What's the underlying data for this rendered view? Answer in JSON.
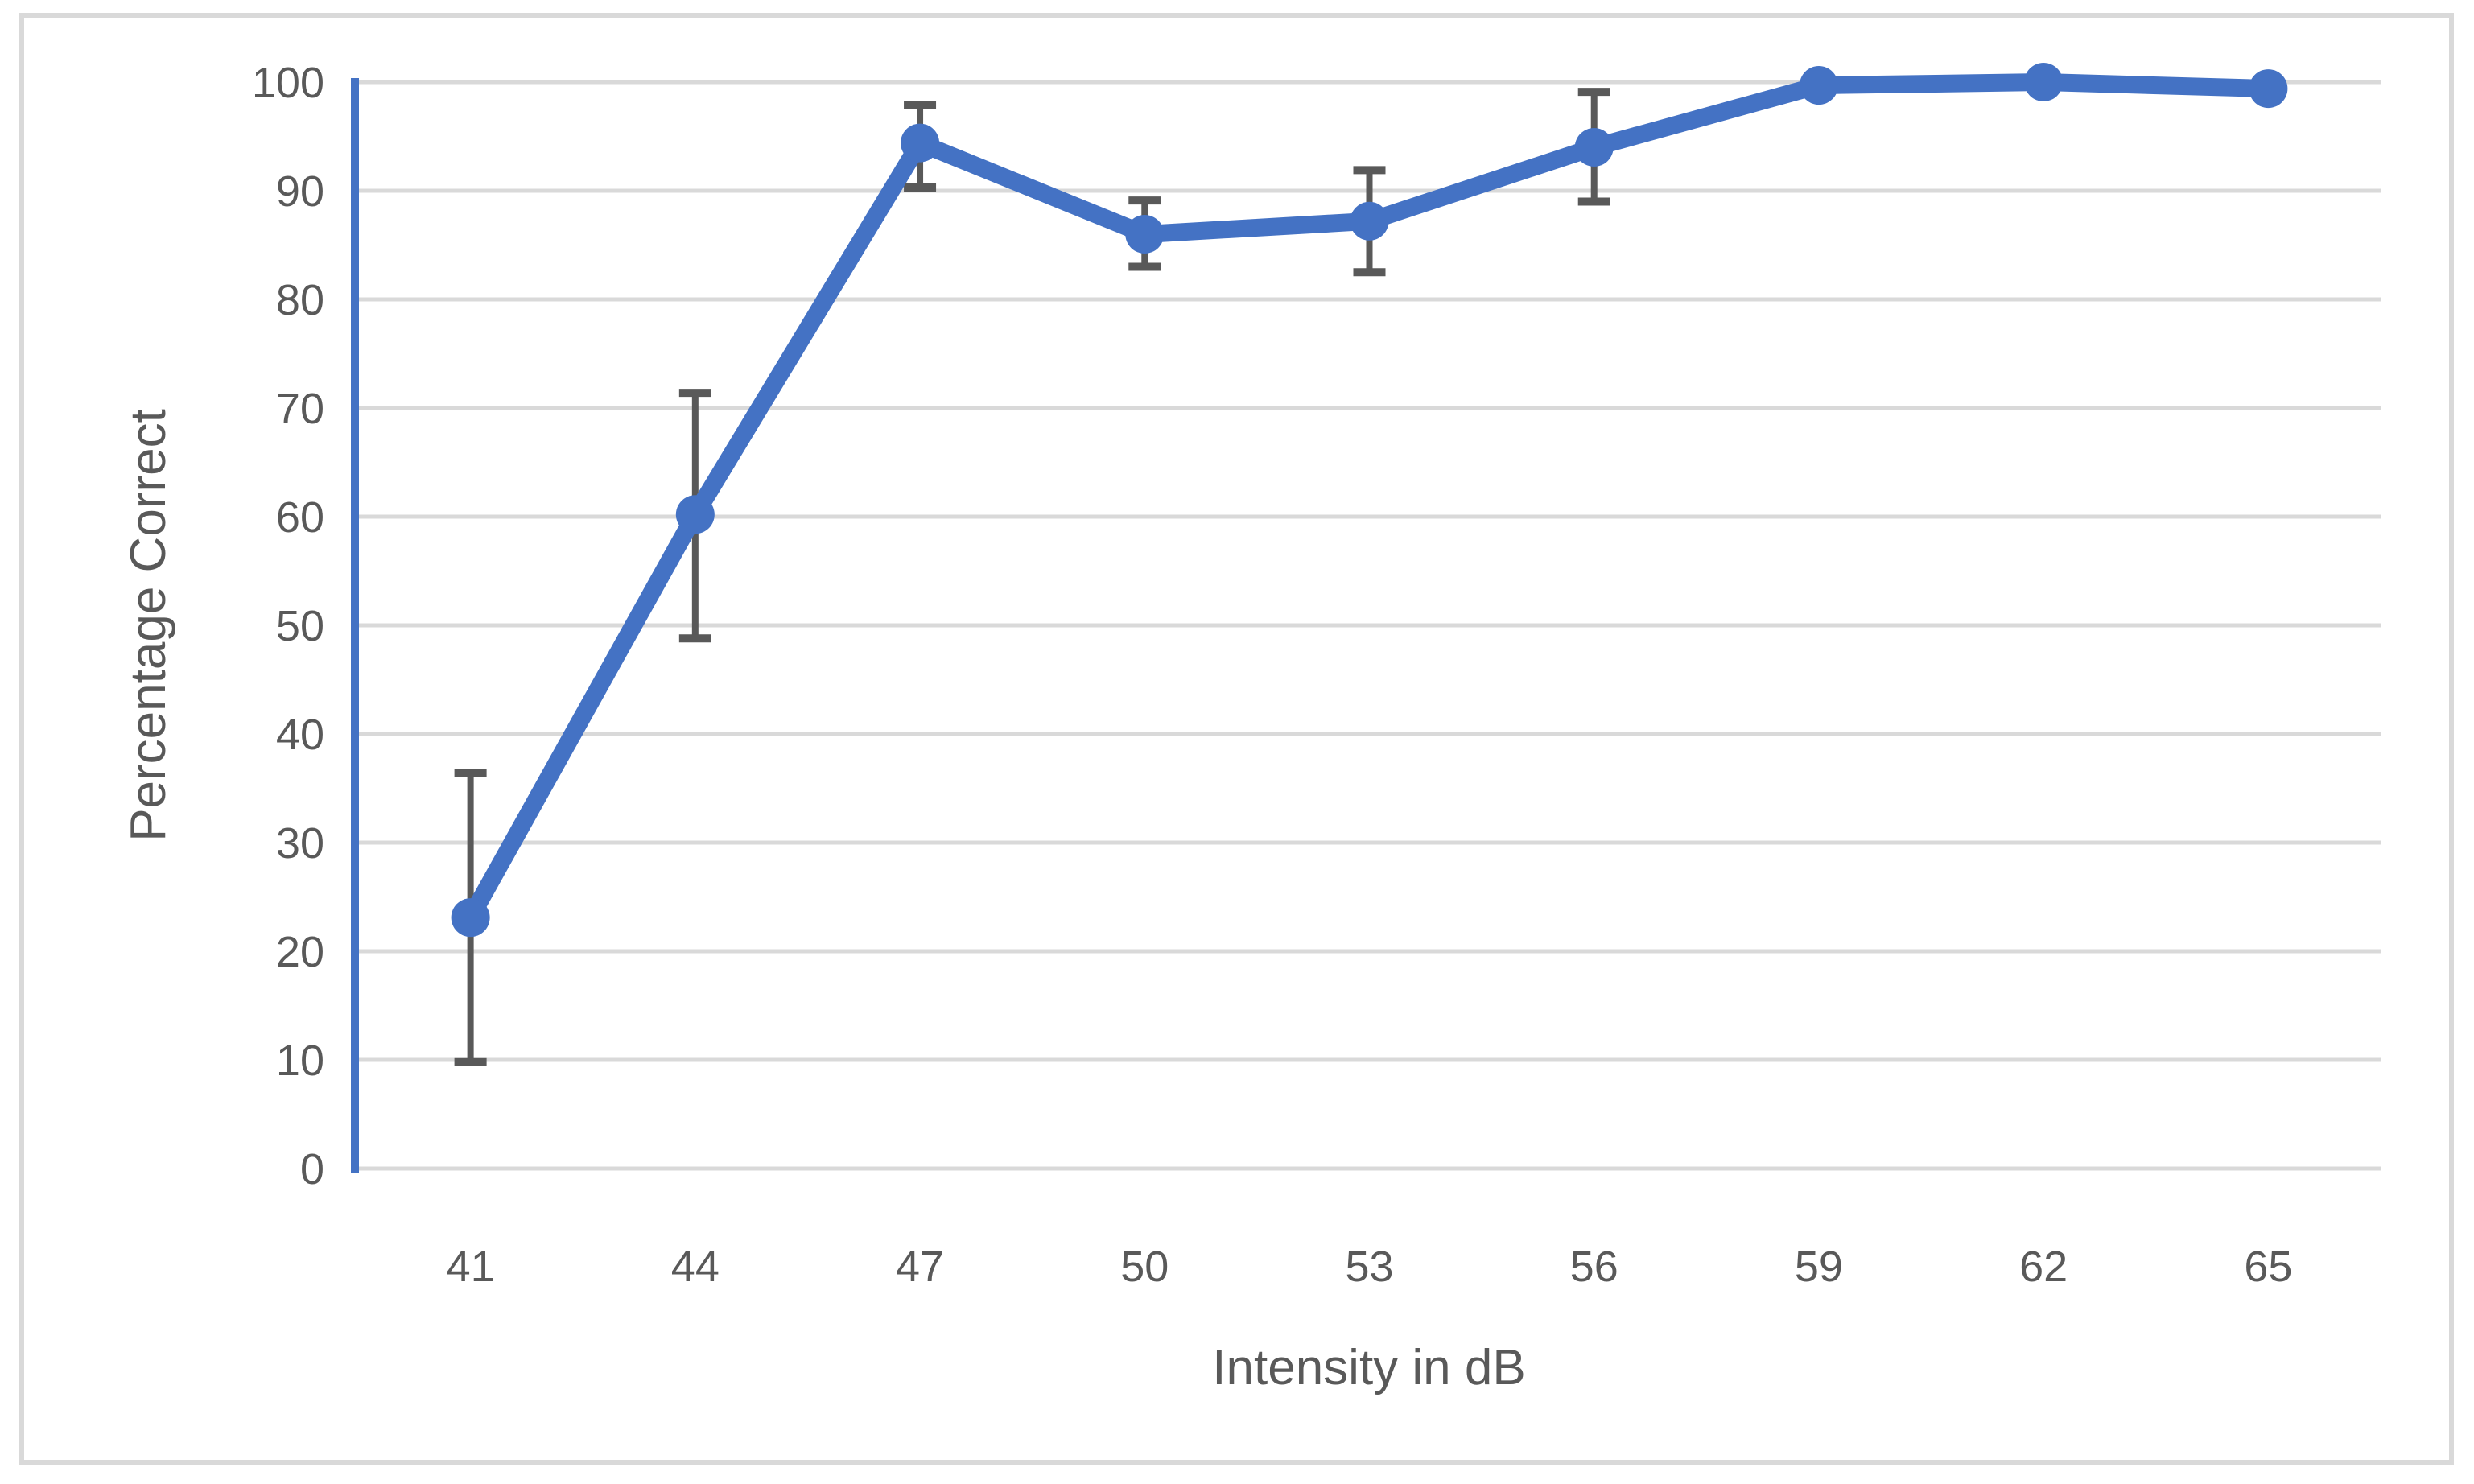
{
  "chart_data": {
    "type": "line",
    "title": "",
    "xlabel": "Intensity in dB",
    "ylabel": "Percentage Correct",
    "categories": [
      "41",
      "44",
      "47",
      "50",
      "53",
      "56",
      "59",
      "62",
      "65"
    ],
    "y_ticks": [
      "0",
      "10",
      "20",
      "30",
      "40",
      "50",
      "60",
      "70",
      "80",
      "90",
      "100"
    ],
    "ylim": [
      0,
      100
    ],
    "grid": "horizontal-major",
    "legend": "none",
    "series": [
      {
        "name": "Percentage Correct",
        "values": [
          23.1,
          60.2,
          94.4,
          86.0,
          87.2,
          94.0,
          99.7,
          100.0,
          99.4
        ],
        "error_low": [
          9.8,
          48.8,
          90.3,
          83.0,
          82.5,
          89.0,
          null,
          null,
          null
        ],
        "error_high": [
          36.4,
          71.4,
          97.9,
          89.1,
          91.9,
          99.1,
          null,
          null,
          null
        ],
        "marker": "circle",
        "color": "#4472C4"
      }
    ],
    "colors": {
      "series_line": "#4472C4",
      "y_axis_line": "#4472C4",
      "gridline": "#D9D9D9",
      "chart_border": "#D9D9D9",
      "error_bar": "#595959",
      "text": "#595959",
      "background": "#FFFFFF"
    }
  }
}
